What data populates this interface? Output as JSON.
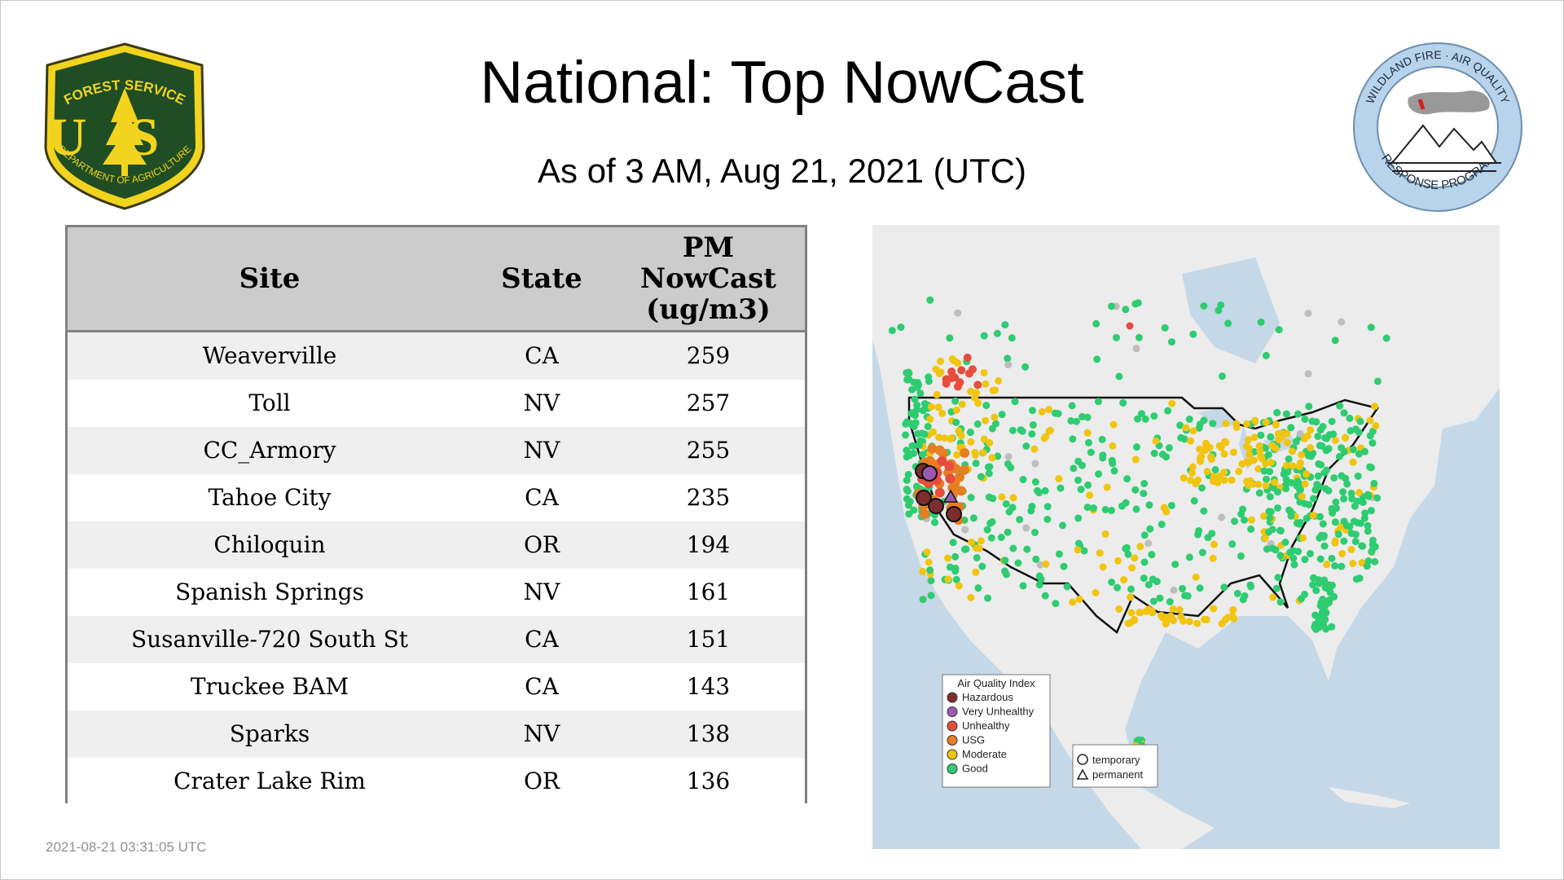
{
  "header": {
    "title": "National: Top NowCast",
    "subtitle": "As of  3 AM, Aug 21, 2021 (UTC)"
  },
  "logos": {
    "forest_service": {
      "top_text": "FOREST SERVICE",
      "letters": "US",
      "bottom_text": "DEPARTMENT OF AGRICULTURE"
    },
    "wildland": {
      "top_text": "WILDLAND FIRE · AIR QUALITY",
      "bottom_text": "RESPONSE PROGRAM"
    }
  },
  "table": {
    "headers": {
      "site": "Site",
      "state": "State",
      "pm1": "PM",
      "pm2": "NowCast",
      "pm3": "(ug/m3)"
    },
    "rows": [
      {
        "site": "Weaverville",
        "state": "CA",
        "value": "259"
      },
      {
        "site": "Toll",
        "state": "NV",
        "value": "257"
      },
      {
        "site": "CC_Armory",
        "state": "NV",
        "value": "255"
      },
      {
        "site": "Tahoe City",
        "state": "CA",
        "value": "235"
      },
      {
        "site": "Chiloquin",
        "state": "OR",
        "value": "194"
      },
      {
        "site": "Spanish Springs",
        "state": "NV",
        "value": "161"
      },
      {
        "site": "Susanville-720 South St",
        "state": "CA",
        "value": "151"
      },
      {
        "site": "Truckee BAM",
        "state": "CA",
        "value": "143"
      },
      {
        "site": "Sparks",
        "state": "NV",
        "value": "138"
      },
      {
        "site": "Crater Lake Rim",
        "state": "OR",
        "value": "136"
      }
    ]
  },
  "map": {
    "legend": {
      "title": "Air Quality Index",
      "items": [
        {
          "label": "Hazardous",
          "color": "#7e2d2d"
        },
        {
          "label": "Very Unhealthy",
          "color": "#9b59b6"
        },
        {
          "label": "Unhealthy",
          "color": "#e74c3c"
        },
        {
          "label": "USG",
          "color": "#e67e22"
        },
        {
          "label": "Moderate",
          "color": "#f1c40f"
        },
        {
          "label": "Good",
          "color": "#2ecc71"
        }
      ]
    },
    "shape_legend": {
      "temporary": "temporary",
      "permanent": "permanent"
    },
    "colors": {
      "land": "#ececec",
      "water": "#c5d8e8",
      "border": "#111111"
    }
  },
  "footer": {
    "timestamp": "2021-08-21 03:31:05 UTC"
  }
}
